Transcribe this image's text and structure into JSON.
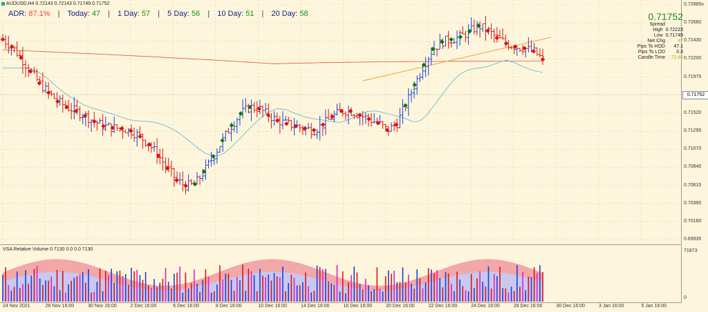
{
  "header": {
    "symbol_line": "AUDUSD,H4  0.72143 0.72143 0.71749 0.71752",
    "close_label": "×"
  },
  "adr": {
    "adr_label": "ADR:",
    "adr_value": "87.1%",
    "today_label": "Today:",
    "today_value": "47",
    "day1_label": "1 Day:",
    "day1_value": "57",
    "day5_label": "5 Day:",
    "day5_value": "56",
    "day10_label": "10 Day:",
    "day10_value": "51",
    "day20_label": "20 Day:",
    "day20_value": "58"
  },
  "info_panel": {
    "price": "0.71752",
    "spread_label": "Spread",
    "spread_value": "",
    "high_label": "High",
    "high_value": "0.72223",
    "low_label": "Low",
    "low_value": "0.71749",
    "netchg_label": "Net Chg",
    "netchg_value": "47",
    "hod_label": "Pips To HOD",
    "hod_value": "47.1",
    "lod_label": "Pips To LOD",
    "lod_value": "0.3",
    "candle_label": "Candle Time",
    "candle_value": "72:46"
  },
  "price_axis": [
    "0.72885",
    "0.72660",
    "0.72430",
    "0.72200",
    "0.71975",
    "0.71752",
    "0.71520",
    "0.71295",
    "0.71070",
    "0.70840",
    "0.70615",
    "0.70390",
    "0.70160",
    "0.69935"
  ],
  "current_price_tag": "0.71752",
  "volume": {
    "indicator_label": "VSA Relative Volume 0 7130 0.0 0.0 7130",
    "axis_max": "71873",
    "axis_min": "0"
  },
  "time_axis": [
    "24 Nov 2021",
    "26 Nov 16:00",
    "30 Nov 16:00",
    "2 Dec 16:00",
    "6 Dec 16:00",
    "8 Dec 16:00",
    "10 Dec 16:00",
    "14 Dec 16:00",
    "16 Dec 16:00",
    "20 Dec 16:00",
    "22 Dec 16:00",
    "24 Dec 16:00",
    "28 Dec 16:00",
    "30 Dec 16:00",
    "3 Jan 16:00",
    "5 Jan 16:00"
  ],
  "colors": {
    "background": "#fdf6dc",
    "bull_bar": "#1a3fd6",
    "bear_bar": "#e01010",
    "trend_up": "#0a7a0a",
    "trend_down": "#e01010",
    "ma_red": "#e05030",
    "ma_cyan": "#6bb8d8",
    "trendline": "#f0a030"
  },
  "chart_data": {
    "type": "line",
    "title": "AUDUSD,H4",
    "ylim": [
      0.69935,
      0.72885
    ],
    "series": [
      {
        "name": "trend",
        "values": [
          0.7245,
          0.7236,
          0.7222,
          0.7205,
          0.719,
          0.7178,
          0.7167,
          0.716,
          0.7155,
          0.7149,
          0.7142,
          0.7136,
          0.7134,
          0.7133,
          0.713,
          0.7123,
          0.7113,
          0.7099,
          0.7083,
          0.7068,
          0.7061,
          0.7063,
          0.7079,
          0.7098,
          0.7118,
          0.7137,
          0.7152,
          0.716,
          0.7158,
          0.715,
          0.7143,
          0.7139,
          0.7136,
          0.7133,
          0.7131,
          0.7138,
          0.7148,
          0.7155,
          0.7155,
          0.715,
          0.7145,
          0.714,
          0.7131,
          0.7138,
          0.7162,
          0.7188,
          0.7213,
          0.7233,
          0.7242,
          0.7245,
          0.7248,
          0.7255,
          0.7262,
          0.7256,
          0.7247,
          0.724,
          0.7236,
          0.7234,
          0.723,
          0.722
        ]
      }
    ]
  }
}
